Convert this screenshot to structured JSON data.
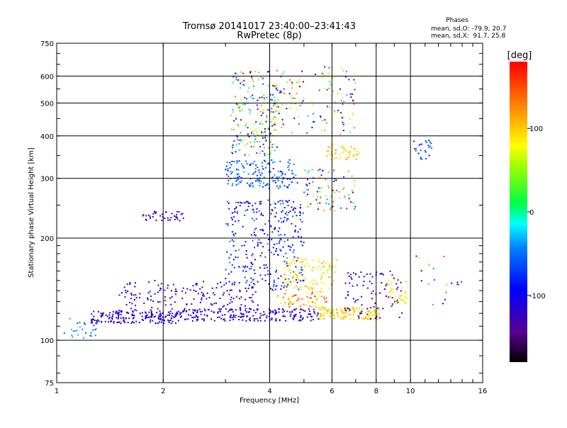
{
  "chart_data": {
    "type": "scatter",
    "title": "Tromsø 20141017 23:40:00–23:41:43",
    "subtitle": "RwPretec (8p)",
    "xlabel": "Frequency [MHz]",
    "ylabel": "Stationary phase Virtual Height [km]",
    "x_scale": "log",
    "y_scale": "log",
    "xlim": [
      1,
      16
    ],
    "ylim": [
      75,
      750
    ],
    "x_ticks": [
      1,
      2,
      4,
      6,
      8,
      10,
      16
    ],
    "y_ticks": [
      75,
      100,
      200,
      300,
      400,
      500,
      600,
      750
    ],
    "grid": true,
    "colorbar": {
      "title": "[deg]",
      "range": [
        -180,
        180
      ],
      "ticks": [
        100,
        0,
        -100
      ]
    },
    "info": {
      "heading": "Phases",
      "line1": "mean, sd,O: -79.9, 20.7",
      "line2": "mean, sd,X:  91.7, 25.8"
    },
    "clusters": [
      {
        "freq": [
          1.05,
          1.3
        ],
        "height": [
          100,
          118
        ],
        "phase": [
          -70,
          -20
        ],
        "count": 30
      },
      {
        "freq": [
          1.25,
          2.2
        ],
        "height": [
          112,
          122
        ],
        "phase": [
          -130,
          -95
        ],
        "count": 180
      },
      {
        "freq": [
          1.5,
          3.8
        ],
        "height": [
          122,
          150
        ],
        "phase": [
          -140,
          -90
        ],
        "count": 160
      },
      {
        "freq": [
          1.75,
          2.3
        ],
        "height": [
          225,
          240
        ],
        "phase": [
          -130,
          -100
        ],
        "count": 40
      },
      {
        "freq": [
          2.2,
          5.5
        ],
        "height": [
          114,
          124
        ],
        "phase": [
          -130,
          -95
        ],
        "count": 220
      },
      {
        "freq": [
          3.0,
          5.0
        ],
        "height": [
          140,
          260
        ],
        "phase": [
          -140,
          -40
        ],
        "count": 320
      },
      {
        "freq": [
          3.0,
          4.8
        ],
        "height": [
          280,
          340
        ],
        "phase": [
          -90,
          -30
        ],
        "count": 160
      },
      {
        "freq": [
          3.1,
          4.2
        ],
        "height": [
          350,
          620
        ],
        "phase": [
          -150,
          140
        ],
        "count": 200
      },
      {
        "freq": [
          4.2,
          5.8
        ],
        "height": [
          125,
          140
        ],
        "phase": [
          60,
          160
        ],
        "count": 70
      },
      {
        "freq": [
          4.4,
          6.2
        ],
        "height": [
          140,
          175
        ],
        "phase": [
          60,
          120
        ],
        "count": 110
      },
      {
        "freq": [
          5.5,
          8.2
        ],
        "height": [
          115,
          125
        ],
        "phase": [
          70,
          120
        ],
        "count": 140
      },
      {
        "freq": [
          5.8,
          7.2
        ],
        "height": [
          340,
          380
        ],
        "phase": [
          70,
          120
        ],
        "count": 50
      },
      {
        "freq": [
          4.0,
          7.0
        ],
        "height": [
          400,
          640
        ],
        "phase": [
          -150,
          150
        ],
        "count": 140
      },
      {
        "freq": [
          5.0,
          7.0
        ],
        "height": [
          240,
          320
        ],
        "phase": [
          -140,
          150
        ],
        "count": 90
      },
      {
        "freq": [
          6.5,
          9.5
        ],
        "height": [
          115,
          160
        ],
        "phase": [
          -140,
          -90
        ],
        "count": 90
      },
      {
        "freq": [
          8.5,
          9.8
        ],
        "height": [
          128,
          150
        ],
        "phase": [
          70,
          110
        ],
        "count": 40
      },
      {
        "freq": [
          10.2,
          11.5
        ],
        "height": [
          340,
          390
        ],
        "phase": [
          -100,
          -40
        ],
        "count": 25
      },
      {
        "freq": [
          10,
          14
        ],
        "height": [
          120,
          180
        ],
        "phase": [
          -150,
          150
        ],
        "count": 20
      }
    ]
  }
}
